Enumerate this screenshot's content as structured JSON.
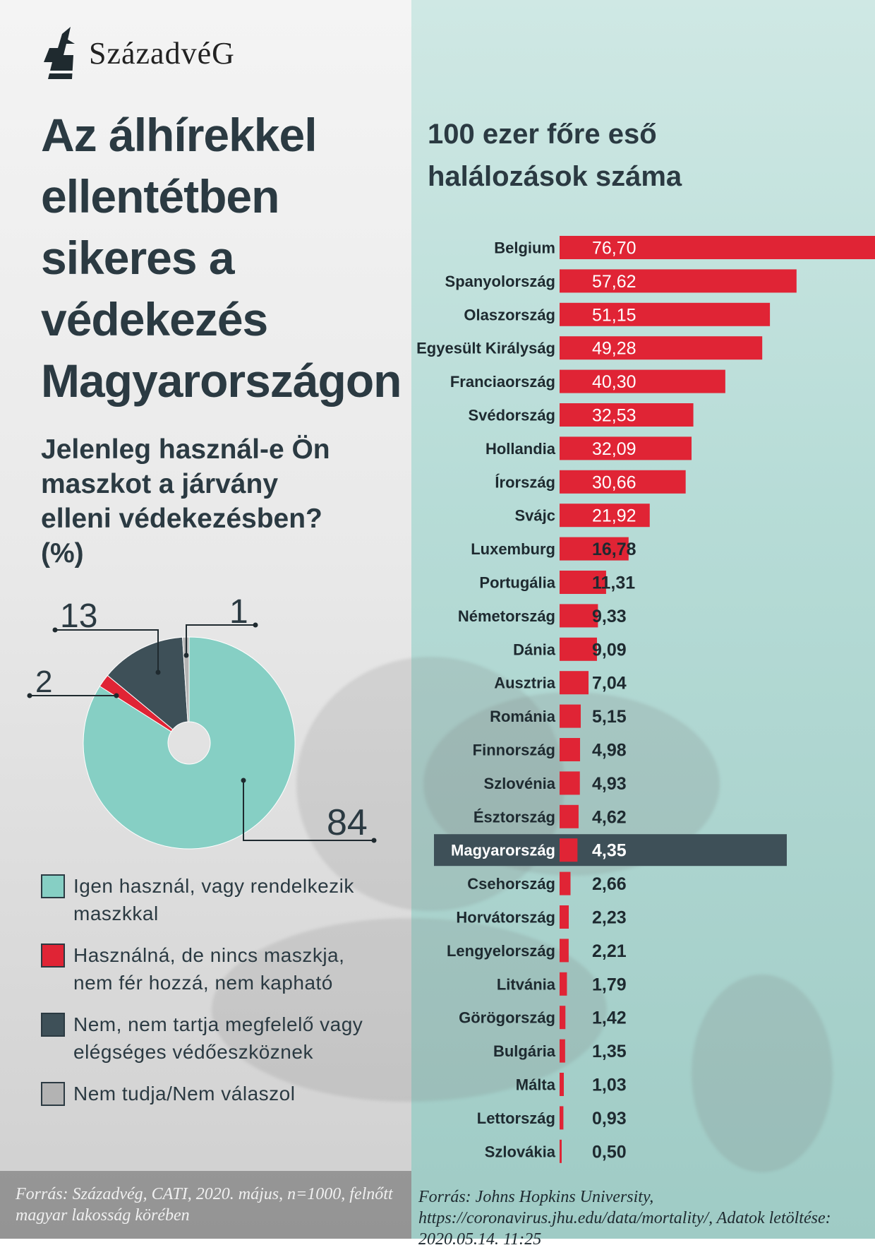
{
  "logo": {
    "icon": "szazadveg-logo-icon",
    "text": "SzázadvéG"
  },
  "title": "Az álhírekkel ellentétben sikeres a védekezés Magyarországon",
  "question": "Jelenleg használ-e Ön maszkot a járvány elleni védekezésben?(%)",
  "legend": [
    {
      "label": "Igen használ, vagy rendelkezik maszkkal",
      "color": "#86cfc4"
    },
    {
      "label": "Használná, de nincs maszkja, nem fér hozzá, nem kapható",
      "color": "#e02435"
    },
    {
      "label": "Nem, nem tartja megfelelő vagy elégséges védőeszköznek",
      "color": "#3e5058"
    },
    {
      "label": "Nem tudja/Nem válaszol",
      "color": "#b3b3b3"
    }
  ],
  "source_left": "Forrás: Századvég, CATI, 2020. május, n=1000, felnőtt magyar lakosság körében",
  "source_right": "Forrás: Johns Hopkins University, https://coronavirus.jhu.edu/data/mortality/, Adatok letöltése: 2020.05.14. 11:25",
  "chart_data": [
    {
      "type": "pie",
      "title": "Jelenleg használ-e Ön maszkot a járvány elleni védekezésben?(%)",
      "categories": [
        "Igen használ, vagy rendelkezik maszkkal",
        "Használná, de nincs maszkja, nem fér hozzá, nem kapható",
        "Nem, nem tartja megfelelő vagy elégséges védőeszköznek",
        "Nem tudja/Nem válaszol"
      ],
      "values": [
        84,
        2,
        13,
        1
      ],
      "data_labels": [
        "84",
        "2",
        "13",
        "1"
      ],
      "colors": [
        "#86cfc4",
        "#e02435",
        "#3e5058",
        "#b3b3b3"
      ],
      "donut": true
    },
    {
      "type": "bar",
      "orientation": "horizontal",
      "title": "100 ezer főre eső halálozások száma",
      "categories": [
        "Belgium",
        "Spanyolország",
        "Olaszország",
        "Egyesült Királyság",
        "Franciaország",
        "Svédország",
        "Hollandia",
        "Írország",
        "Svájc",
        "Luxemburg",
        "Portugália",
        "Németország",
        "Dánia",
        "Ausztria",
        "Románia",
        "Finnország",
        "Szlovénia",
        "Észtország",
        "Magyarország",
        "Csehország",
        "Horvátország",
        "Lengyelország",
        "Litvánia",
        "Görögország",
        "Bulgária",
        "Málta",
        "Lettország",
        "Szlovákia"
      ],
      "values": [
        76.7,
        57.62,
        51.15,
        49.28,
        40.3,
        32.53,
        32.09,
        30.66,
        21.92,
        16.78,
        11.31,
        9.33,
        9.09,
        7.04,
        5.15,
        4.98,
        4.93,
        4.62,
        4.35,
        2.66,
        2.23,
        2.21,
        1.79,
        1.42,
        1.35,
        1.03,
        0.93,
        0.5
      ],
      "data_labels": [
        "76,70",
        "57,62",
        "51,15",
        "49,28",
        "40,30",
        "32,53",
        "32,09",
        "30,66",
        "21,92",
        "16,78",
        "11,31",
        "9,33",
        "9,09",
        "7,04",
        "5,15",
        "4,98",
        "4,93",
        "4,62",
        "4,35",
        "2,66",
        "2,23",
        "2,21",
        "1,79",
        "1,42",
        "1,35",
        "1,03",
        "0,93",
        "0,50"
      ],
      "highlight": "Magyarország",
      "bar_color": "#e02435",
      "highlight_color": "#3e5058",
      "xlim": [
        0,
        76.7
      ]
    }
  ]
}
